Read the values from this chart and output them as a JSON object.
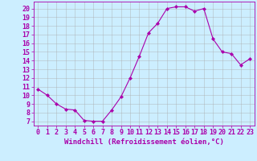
{
  "x": [
    0,
    1,
    2,
    3,
    4,
    5,
    6,
    7,
    8,
    9,
    10,
    11,
    12,
    13,
    14,
    15,
    16,
    17,
    18,
    19,
    20,
    21,
    22,
    23
  ],
  "y": [
    10.7,
    10.0,
    9.0,
    8.4,
    8.3,
    7.1,
    7.0,
    7.0,
    8.3,
    9.8,
    12.0,
    14.5,
    17.2,
    18.3,
    20.0,
    20.2,
    20.2,
    19.7,
    20.0,
    16.5,
    15.0,
    14.8,
    13.5,
    14.2
  ],
  "line_color": "#aa00aa",
  "marker": "D",
  "marker_size": 2.2,
  "bg_color": "#cceeff",
  "grid_color": "#aaaaaa",
  "xlabel": "Windchill (Refroidissement éolien,°C)",
  "ylabel": "",
  "title": "",
  "xlim": [
    -0.5,
    23.5
  ],
  "ylim": [
    6.5,
    20.8
  ],
  "yticks": [
    7,
    8,
    9,
    10,
    11,
    12,
    13,
    14,
    15,
    16,
    17,
    18,
    19,
    20
  ],
  "xticks": [
    0,
    1,
    2,
    3,
    4,
    5,
    6,
    7,
    8,
    9,
    10,
    11,
    12,
    13,
    14,
    15,
    16,
    17,
    18,
    19,
    20,
    21,
    22,
    23
  ],
  "xlabel_fontsize": 6.5,
  "tick_fontsize": 6.0,
  "tick_color": "#aa00aa",
  "spine_color": "#aa00aa",
  "label_color": "#aa00aa"
}
